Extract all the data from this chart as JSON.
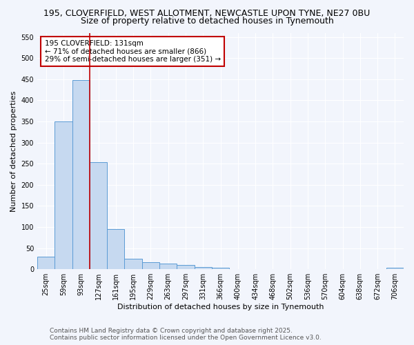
{
  "title_line1": "195, CLOVERFIELD, WEST ALLOTMENT, NEWCASTLE UPON TYNE, NE27 0BU",
  "title_line2": "Size of property relative to detached houses in Tynemouth",
  "xlabel": "Distribution of detached houses by size in Tynemouth",
  "ylabel": "Number of detached properties",
  "categories": [
    "25sqm",
    "59sqm",
    "93sqm",
    "127sqm",
    "161sqm",
    "195sqm",
    "229sqm",
    "263sqm",
    "297sqm",
    "331sqm",
    "366sqm",
    "400sqm",
    "434sqm",
    "468sqm",
    "502sqm",
    "536sqm",
    "570sqm",
    "604sqm",
    "638sqm",
    "672sqm",
    "706sqm"
  ],
  "values": [
    29,
    350,
    448,
    253,
    95,
    25,
    17,
    13,
    10,
    5,
    4,
    0,
    0,
    0,
    0,
    0,
    0,
    0,
    0,
    0,
    4
  ],
  "bar_color": "#c6d9f0",
  "bar_edge_color": "#5b9bd5",
  "vline_x": 2.5,
  "vline_color": "#c00000",
  "annotation_text": "195 CLOVERFIELD: 131sqm\n← 71% of detached houses are smaller (866)\n29% of semi-detached houses are larger (351) →",
  "annotation_box_facecolor": "#ffffff",
  "annotation_box_edgecolor": "#c00000",
  "ylim": [
    0,
    560
  ],
  "yticks": [
    0,
    50,
    100,
    150,
    200,
    250,
    300,
    350,
    400,
    450,
    500,
    550
  ],
  "footer_text": "Contains HM Land Registry data © Crown copyright and database right 2025.\nContains public sector information licensed under the Open Government Licence v3.0.",
  "bg_color": "#f2f5fc",
  "plot_bg_color": "#f2f5fc",
  "grid_color": "#ffffff",
  "title1_fontsize": 9.0,
  "title2_fontsize": 9.0,
  "axis_label_fontsize": 8.0,
  "tick_fontsize": 7.0,
  "annotation_fontsize": 7.5,
  "footer_fontsize": 6.5
}
